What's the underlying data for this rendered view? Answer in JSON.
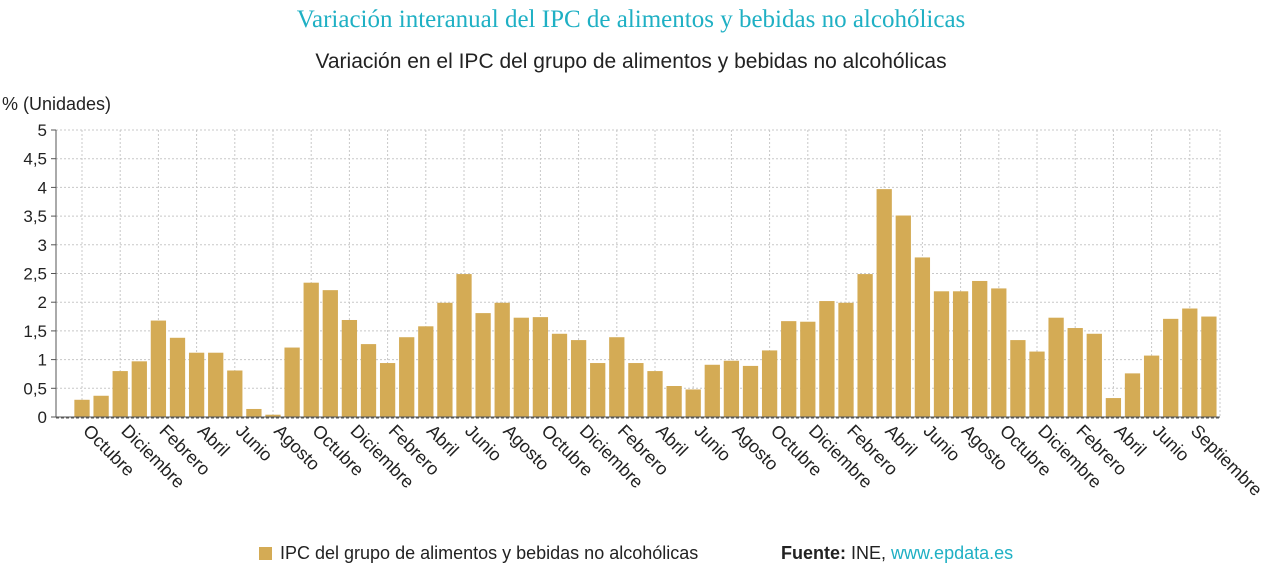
{
  "header": {
    "title": "Variación interanual del IPC de alimentos y bebidas no alcohólicas",
    "subtitle": "Variación en el IPC del grupo de alimentos y bebidas no alcohólicas"
  },
  "colors": {
    "bar": "#d4ab55",
    "title": "#1fb0c4",
    "grid": "#c8c8c8"
  },
  "legend": {
    "series_label": "IPC del grupo de alimentos y bebidas no alcohólicas"
  },
  "source": {
    "label": "Fuente:",
    "provider": "INE,",
    "link": "www.epdata.es"
  },
  "chart_data": {
    "type": "bar",
    "ylabel": "% (Unidades)",
    "ylim": [
      0,
      5
    ],
    "yticks": [
      "0",
      "0,5",
      "1",
      "1,5",
      "2",
      "2,5",
      "3",
      "3,5",
      "4",
      "4,5",
      "5"
    ],
    "grid": true,
    "tick_labels": [
      "Octubre",
      "Diciembre",
      "Febrero",
      "Abril",
      "Junio",
      "Agosto",
      "Octubre",
      "Diciembre",
      "Febrero",
      "Abril",
      "Junio",
      "Agosto",
      "Octubre",
      "Diciembre",
      "Febrero",
      "Abril",
      "Junio",
      "Agosto",
      "Octubre",
      "Diciembre",
      "Febrero",
      "Abril",
      "Junio",
      "Agosto",
      "Octubre",
      "Diciembre",
      "Febrero",
      "Abril",
      "Junio",
      "Septiembre"
    ],
    "series": [
      {
        "name": "IPC del grupo de alimentos y bebidas no alcohólicas",
        "values": [
          0.3,
          0.37,
          0.8,
          0.97,
          1.68,
          1.38,
          1.12,
          1.12,
          0.81,
          0.14,
          0.04,
          1.21,
          2.34,
          2.21,
          1.69,
          1.27,
          0.94,
          1.39,
          1.58,
          1.99,
          2.49,
          1.81,
          1.99,
          1.73,
          1.74,
          1.45,
          1.34,
          0.94,
          1.39,
          0.94,
          0.8,
          0.54,
          0.48,
          0.91,
          0.98,
          0.89,
          1.16,
          1.67,
          1.66,
          2.02,
          1.99,
          2.49,
          3.97,
          3.51,
          2.78,
          2.19,
          2.19,
          2.37,
          2.24,
          1.34,
          1.14,
          1.73,
          1.55,
          1.45,
          0.33,
          0.76,
          1.07,
          1.71,
          1.89,
          1.75
        ]
      }
    ]
  }
}
